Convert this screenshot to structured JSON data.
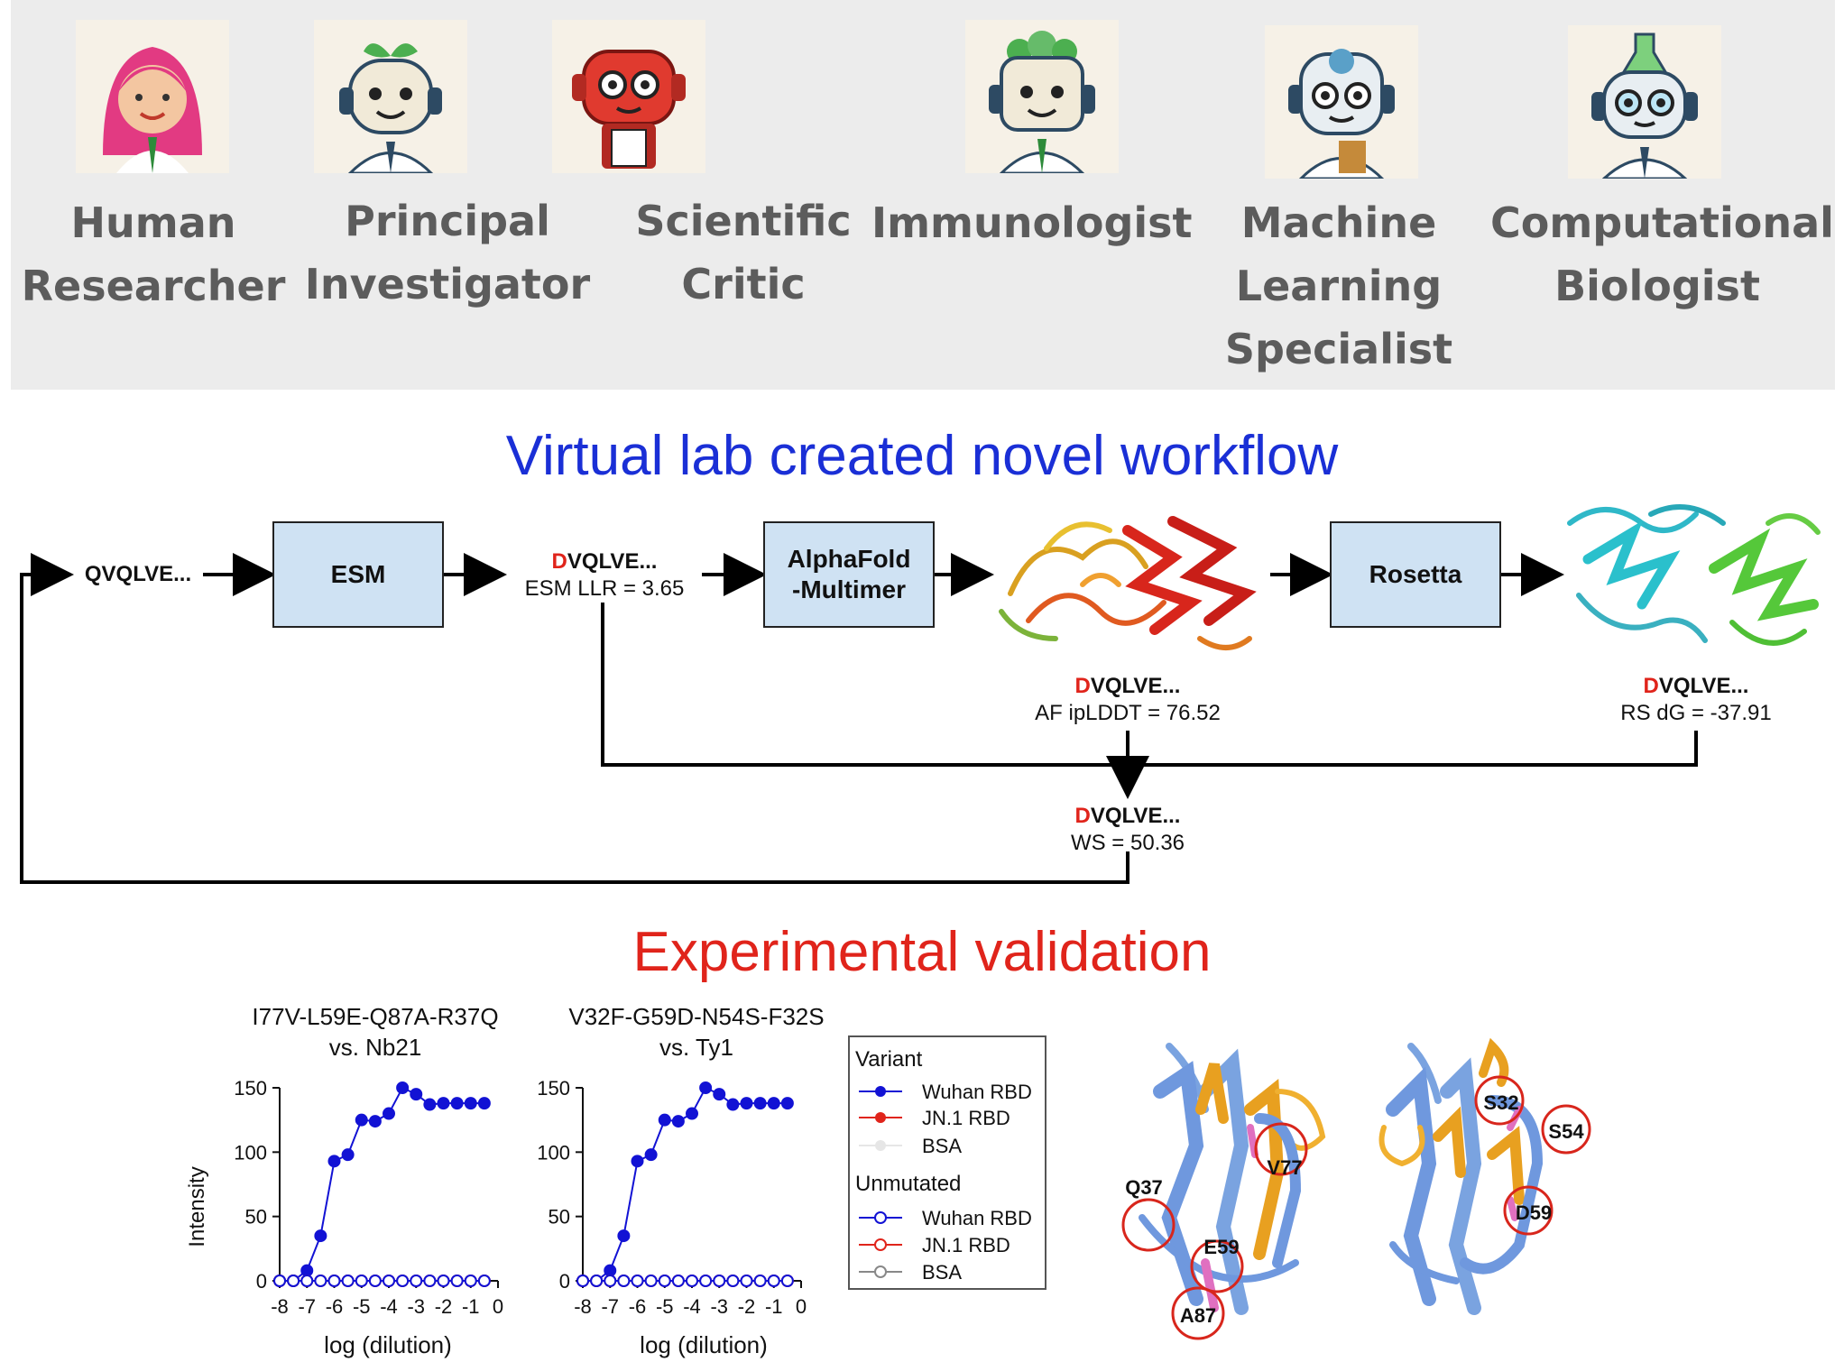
{
  "team": {
    "members": [
      {
        "line1": "Human",
        "line2": "Researcher",
        "line3": "",
        "icon": "human-researcher-avatar"
      },
      {
        "line1": "Principal",
        "line2": "Investigator",
        "line3": "",
        "icon": "principal-investigator-avatar"
      },
      {
        "line1": "Scientific",
        "line2": "Critic",
        "line3": "",
        "icon": "scientific-critic-avatar"
      },
      {
        "line1": "Immunologist",
        "line2": "",
        "line3": "",
        "icon": "immunologist-avatar"
      },
      {
        "line1": "Machine",
        "line2": "Learning",
        "line3": "Specialist",
        "icon": "machine-learning-specialist-avatar"
      },
      {
        "line1": "Computational",
        "line2": "Biologist",
        "line3": "",
        "icon": "computational-biologist-avatar"
      }
    ]
  },
  "workflow": {
    "title": "Virtual lab created novel workflow",
    "title_color": "#1a2fd6",
    "start_seq": "QVQLVE...",
    "esm_label": "ESM",
    "af_label_1": "AlphaFold",
    "af_label_2": "-Multimer",
    "rosetta_label": "Rosetta",
    "mut_letter": "D",
    "seq_rest": "VQLVE...",
    "esm_score": "ESM LLR = 3.65",
    "af_score": "AF ipLDDT = 76.52",
    "rs_score": "RS dG = -37.91",
    "ws_score": "WS = 50.36",
    "box_color": "#cfe2f3",
    "mutation_color": "#e0241b"
  },
  "validation": {
    "title": "Experimental validation",
    "title_color": "#e0241b",
    "legend": {
      "variant_header": "Variant",
      "unmutated_header": "Unmutated",
      "items_variant": [
        "Wuhan RBD",
        "JN.1 RBD",
        "BSA"
      ],
      "items_unmutated": [
        "Wuhan RBD",
        "JN.1 RBD",
        "BSA"
      ]
    },
    "structure_labels_left": [
      "Q37",
      "V77",
      "E59",
      "A87"
    ],
    "structure_labels_right": [
      "S32",
      "S54",
      "D59"
    ]
  },
  "chart_data": [
    {
      "type": "line",
      "title": "I77V-L59E-Q87A-R37Q\nvs. Nb21",
      "title_line1": "I77V-L59E-Q87A-R37Q",
      "title_line2": "vs. Nb21",
      "xlabel": "log (dilution)",
      "ylabel": "Intensity",
      "xlim": [
        -8,
        0
      ],
      "ylim": [
        0,
        150
      ],
      "xticks": [
        "-8",
        "-7",
        "-6",
        "-5",
        "-4",
        "-3",
        "-2",
        "-1",
        "0"
      ],
      "yticks": [
        "0",
        "50",
        "100",
        "150"
      ],
      "x": [
        -8,
        -7.5,
        -7,
        -6.5,
        -6,
        -5.5,
        -5,
        -4.5,
        -4,
        -3.5,
        -3,
        -2.5,
        -2,
        -1.5,
        -1,
        -0.5
      ],
      "series": [
        {
          "name": "Wuhan RBD",
          "group": "Variant",
          "color": "#1212d4",
          "filled": true,
          "values": [
            0,
            0,
            8,
            35,
            93,
            98,
            125,
            124,
            130,
            150,
            145,
            137,
            138,
            138,
            138,
            138
          ]
        },
        {
          "name": "JN.1 RBD",
          "group": "Variant",
          "color": "#e0241b",
          "filled": true,
          "values": [
            0,
            0,
            0,
            0,
            0,
            0,
            0,
            0,
            0,
            0,
            0,
            0,
            0,
            0,
            0,
            0
          ]
        },
        {
          "name": "Wuhan RBD",
          "group": "Unmutated",
          "color": "#1212d4",
          "filled": false,
          "values": [
            0,
            0,
            0,
            0,
            0,
            0,
            0,
            0,
            0,
            0,
            0,
            0,
            0,
            0,
            0,
            0
          ]
        }
      ]
    }
  ]
}
